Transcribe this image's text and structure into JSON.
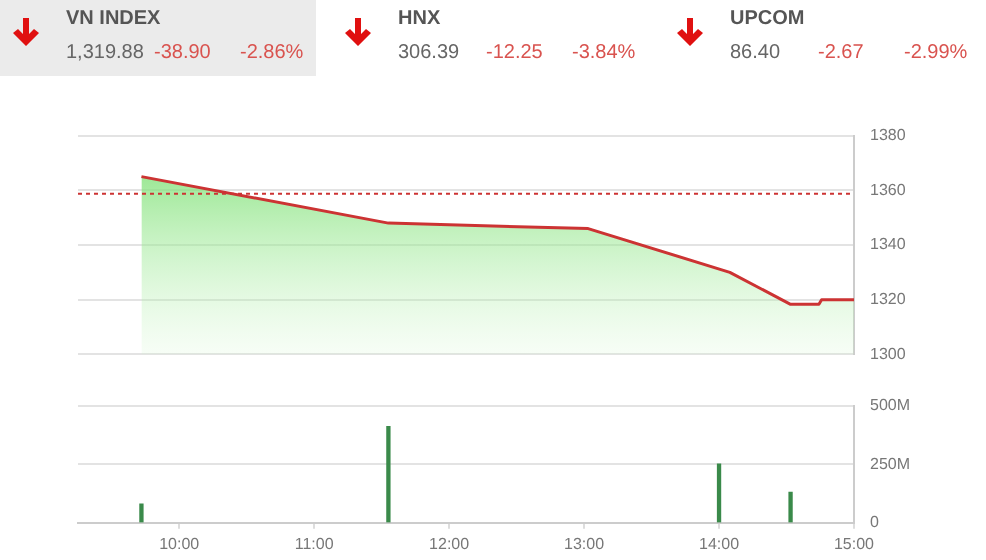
{
  "chart_data": [
    {
      "type": "other",
      "categories": [
        "VN INDEX",
        "HNX",
        "UPCOM"
      ],
      "annotations": [
        "1,319.88",
        "-38.90",
        "-2.86%",
        "306.39",
        "-12.25",
        "-3.84%",
        "86.40",
        "-2.67",
        "-2.99%"
      ]
    },
    {
      "type": "area",
      "x": [
        9.72,
        11.55,
        13.03,
        14.08,
        14.53,
        14.74,
        14.76,
        15.0
      ],
      "series": [
        {
          "color": "#cc3333",
          "values": [
            1365,
            1348,
            1346,
            1330,
            1318.3,
            1318.3,
            1320,
            1320
          ]
        }
      ],
      "xlim": [
        9.25,
        15.0
      ],
      "ylim": [
        1300,
        1380
      ],
      "yticks": [
        1300,
        1320,
        1340,
        1360,
        1380
      ],
      "tick_labels": "y",
      "grid": "y",
      "ref_lines": [
        {
          "axis": "y",
          "value": 1358.78,
          "color": "#cc3333",
          "line_style": "dotted"
        }
      ]
    },
    {
      "type": "bar",
      "x": [
        9.72,
        11.55,
        14.0,
        14.53
      ],
      "series": [
        {
          "color": "#3a8a4a",
          "values": [
            80000000,
            410000000,
            250000000,
            130000000
          ]
        }
      ],
      "xlim": [
        9.25,
        15.0
      ],
      "xticks": [
        {
          "value": 10,
          "label": "10:00"
        },
        {
          "value": 11,
          "label": "11:00"
        },
        {
          "value": 12,
          "label": "12:00"
        },
        {
          "value": 13,
          "label": "13:00"
        },
        {
          "value": 14,
          "label": "14:00"
        },
        {
          "value": 15,
          "label": "15:00"
        }
      ],
      "ylim": [
        0,
        500000000
      ],
      "yticks": [
        0,
        {
          "value": 250000000,
          "label": "250M"
        },
        {
          "value": 500000000,
          "label": "500M"
        }
      ],
      "grid": "y"
    }
  ]
}
